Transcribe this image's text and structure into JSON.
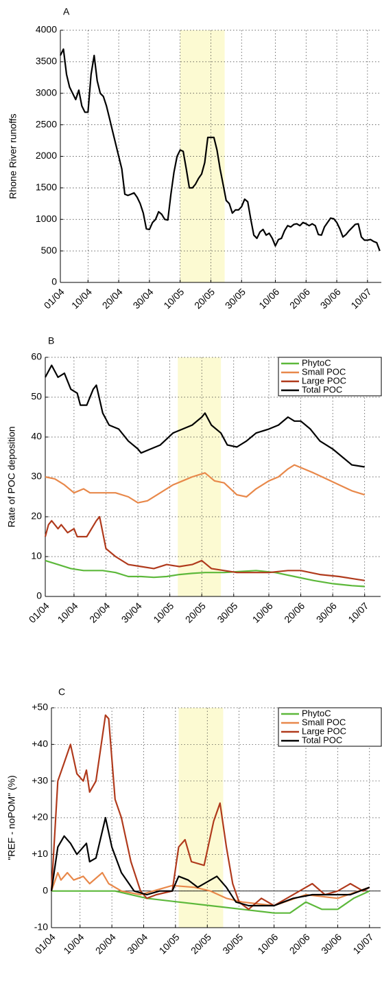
{
  "chart_data": [
    {
      "type": "line",
      "panel_label": "A",
      "ylabel": "Rhone River runoffs",
      "xlim": [
        0,
        104.5
      ],
      "ylim": [
        0,
        4000
      ],
      "xticks": [
        {
          "value": 0,
          "label": "01/04"
        },
        {
          "value": 9,
          "label": "10/04"
        },
        {
          "value": 19,
          "label": "20/04"
        },
        {
          "value": 29,
          "label": "30/04"
        },
        {
          "value": 39,
          "label": "10/05"
        },
        {
          "value": 49,
          "label": "20/05"
        },
        {
          "value": 59,
          "label": "30/05"
        },
        {
          "value": 70,
          "label": "10/06"
        },
        {
          "value": 80,
          "label": "20/06"
        },
        {
          "value": 90,
          "label": "30/06"
        },
        {
          "value": 100,
          "label": "10/07"
        }
      ],
      "yticks": [
        0,
        500,
        1000,
        1500,
        2000,
        2500,
        3000,
        3500,
        4000
      ],
      "grid": true,
      "highlight_x": [
        39,
        53.5
      ],
      "highlight_color": "#fcfad2",
      "color": "#000000",
      "x": [
        0,
        1,
        2,
        3,
        4,
        5,
        6,
        7,
        8,
        9,
        10,
        11,
        12,
        13,
        14,
        15,
        16,
        17,
        18,
        19,
        20,
        21,
        22,
        23,
        24,
        25,
        26,
        27,
        28,
        29,
        30,
        31,
        32,
        33,
        34,
        35,
        36,
        37,
        38,
        39,
        40,
        41,
        42,
        43,
        44,
        45,
        46,
        47,
        48,
        49,
        50,
        51,
        52,
        53,
        54,
        55,
        56,
        57,
        58,
        59,
        60,
        61,
        62,
        63,
        64,
        65,
        66,
        67,
        68,
        69,
        70,
        71,
        72,
        73,
        74,
        75,
        76,
        77,
        78,
        79,
        80,
        81,
        82,
        83,
        84,
        85,
        86,
        87,
        88,
        89,
        90,
        91,
        92,
        93,
        94,
        95,
        96,
        97,
        98,
        99,
        100,
        101,
        102,
        103,
        104
      ],
      "values": [
        3600,
        3700,
        3300,
        3100,
        3000,
        2900,
        3050,
        2800,
        2700,
        2700,
        3300,
        3600,
        3200,
        3000,
        2950,
        2800,
        2600,
        2400,
        2200,
        2000,
        1800,
        1400,
        1380,
        1400,
        1420,
        1350,
        1250,
        1100,
        850,
        840,
        950,
        1000,
        1120,
        1080,
        1000,
        990,
        1400,
        1750,
        2000,
        2100,
        2080,
        1800,
        1500,
        1500,
        1560,
        1650,
        1720,
        1900,
        2300,
        2300,
        2300,
        2100,
        1800,
        1550,
        1300,
        1250,
        1100,
        1150,
        1150,
        1200,
        1320,
        1280,
        1000,
        750,
        700,
        800,
        840,
        750,
        780,
        700,
        580,
        680,
        700,
        820,
        900,
        880,
        920,
        930,
        900,
        950,
        930,
        900,
        930,
        900,
        760,
        750,
        880,
        950,
        1020,
        1010,
        950,
        850,
        720,
        760,
        820,
        870,
        920,
        930,
        720,
        670,
        670,
        680,
        650,
        630,
        500
      ]
    },
    {
      "type": "line",
      "panel_label": "B",
      "ylabel": "Rate of POC deposition",
      "xlim": [
        0,
        105
      ],
      "ylim": [
        0,
        60
      ],
      "xticks": [
        {
          "value": 0,
          "label": "01/04"
        },
        {
          "value": 9,
          "label": "10/04"
        },
        {
          "value": 19,
          "label": "20/04"
        },
        {
          "value": 29,
          "label": "30/04"
        },
        {
          "value": 39,
          "label": "10/05"
        },
        {
          "value": 49,
          "label": "20/05"
        },
        {
          "value": 59,
          "label": "30/05"
        },
        {
          "value": 70,
          "label": "10/06"
        },
        {
          "value": 80,
          "label": "20/06"
        },
        {
          "value": 90,
          "label": "30/06"
        },
        {
          "value": 100,
          "label": "10/07"
        }
      ],
      "yticks": [
        0,
        10,
        20,
        30,
        40,
        50,
        60
      ],
      "grid": true,
      "highlight_x": [
        41.5,
        55
      ],
      "highlight_color": "#fcfad2",
      "legend": "upper right",
      "series": [
        {
          "name": "PhytoC",
          "color": "#5cb83a",
          "x": [
            0,
            4,
            8,
            12,
            18,
            22,
            26,
            30,
            34,
            38,
            42,
            46,
            50,
            56,
            60,
            66,
            72,
            78,
            84,
            90,
            96,
            100
          ],
          "values": [
            9,
            8,
            7,
            6.5,
            6.5,
            6,
            5,
            5,
            4.8,
            5,
            5.5,
            5.8,
            6,
            6,
            6.2,
            6.5,
            6,
            5,
            4,
            3.2,
            2.7,
            2.5
          ]
        },
        {
          "name": "Small POC",
          "color": "#e8884a",
          "x": [
            0,
            3,
            6,
            9,
            12,
            14,
            18,
            22,
            26,
            29,
            32,
            36,
            40,
            43,
            46,
            50,
            53,
            56,
            60,
            63,
            66,
            70,
            73,
            76,
            78,
            81,
            84,
            88,
            92,
            96,
            100
          ],
          "values": [
            30,
            29.5,
            28,
            26,
            27,
            26,
            26,
            26,
            25,
            23.5,
            24,
            26,
            28,
            29,
            30,
            31,
            29,
            28.5,
            25.5,
            25,
            27,
            29,
            30,
            32,
            33,
            32,
            31,
            29.5,
            28,
            26.5,
            25.5
          ]
        },
        {
          "name": "Large POC",
          "color": "#b03a1c",
          "x": [
            0,
            1,
            2,
            4,
            5,
            7,
            9,
            10,
            13,
            16,
            17,
            19,
            22,
            26,
            30,
            34,
            38,
            42,
            46,
            49,
            52,
            56,
            60,
            66,
            70,
            76,
            80,
            86,
            92,
            96,
            100
          ],
          "values": [
            15,
            18,
            19,
            17,
            18,
            16,
            17,
            15,
            15,
            19,
            20,
            12,
            10,
            8,
            7.5,
            7,
            8,
            7.5,
            8,
            9,
            7,
            6.5,
            6,
            6,
            6,
            6.5,
            6.5,
            5.5,
            5,
            4.5,
            4
          ]
        },
        {
          "name": "Total POC",
          "color": "#000000",
          "x": [
            0,
            2,
            4,
            6,
            8,
            10,
            11,
            13,
            15,
            16,
            18,
            20,
            23,
            26,
            29,
            30,
            33,
            36,
            40,
            43,
            46,
            49,
            50,
            52,
            55,
            57,
            60,
            63,
            66,
            70,
            73,
            76,
            78,
            80,
            83,
            86,
            90,
            93,
            96,
            100
          ],
          "values": [
            55,
            58,
            55,
            56,
            52,
            51,
            48,
            48,
            52,
            53,
            46,
            43,
            42,
            39,
            37,
            36,
            37,
            38,
            41,
            42,
            43,
            45,
            46,
            43,
            41,
            38,
            37.5,
            39,
            41,
            42,
            43,
            45,
            44,
            44,
            42,
            39,
            37,
            35,
            33,
            32.5
          ]
        }
      ]
    },
    {
      "type": "line",
      "panel_label": "C",
      "ylabel": "\"REF - noPOM\" (%)",
      "xlim": [
        0,
        103.5
      ],
      "ylim": [
        -10,
        50
      ],
      "xticks": [
        {
          "value": 0,
          "label": "01/04"
        },
        {
          "value": 9,
          "label": "10/04"
        },
        {
          "value": 19,
          "label": "20/04"
        },
        {
          "value": 29,
          "label": "30/04"
        },
        {
          "value": 39,
          "label": "10/05"
        },
        {
          "value": 49,
          "label": "20/05"
        },
        {
          "value": 59,
          "label": "30/05"
        },
        {
          "value": 70,
          "label": "10/06"
        },
        {
          "value": 80,
          "label": "20/06"
        },
        {
          "value": 90,
          "label": "30/06"
        },
        {
          "value": 100,
          "label": "10/07"
        }
      ],
      "yticks": [
        -10,
        0,
        {
          "value": 10,
          "label": "+10"
        },
        {
          "value": 20,
          "label": "+20"
        },
        {
          "value": 30,
          "label": "+30"
        },
        {
          "value": 40,
          "label": "+40"
        },
        {
          "value": 50,
          "label": "+50"
        }
      ],
      "grid": true,
      "zero_line": true,
      "highlight_x": [
        40,
        54
      ],
      "highlight_color": "#fcfad2",
      "legend": "upper right",
      "series": [
        {
          "name": "PhytoC",
          "color": "#5cb83a",
          "x": [
            0,
            10,
            20,
            30,
            40,
            50,
            60,
            70,
            75,
            80,
            85,
            90,
            95,
            100
          ],
          "values": [
            0,
            0,
            0,
            -2,
            -3,
            -4,
            -5,
            -6,
            -6,
            -3,
            -5,
            -5,
            -2,
            0
          ]
        },
        {
          "name": "Small POC",
          "color": "#e8884a",
          "x": [
            0,
            2,
            3,
            5,
            7,
            10,
            12,
            16,
            18,
            22,
            28,
            32,
            38,
            45,
            50,
            55,
            60,
            70,
            80,
            90,
            100
          ],
          "values": [
            0,
            5,
            3,
            5,
            3,
            4,
            2,
            5,
            2,
            0,
            -1,
            0,
            1.5,
            1,
            0,
            -2,
            -3,
            -4,
            -1,
            -2,
            1
          ]
        },
        {
          "name": "Large POC",
          "color": "#b03a1c",
          "x": [
            0,
            2,
            4,
            6,
            8,
            10,
            11,
            12,
            14,
            17,
            18,
            20,
            22,
            25,
            28,
            30,
            33,
            38,
            40,
            42,
            44,
            48,
            51,
            53,
            55,
            57,
            59,
            62,
            66,
            70,
            74,
            78,
            82,
            86,
            90,
            94,
            98,
            100
          ],
          "values": [
            0,
            30,
            35,
            40,
            32,
            30,
            33,
            27,
            30,
            48,
            47,
            25,
            20,
            8,
            0,
            -2,
            -1,
            0,
            12,
            14,
            8,
            7,
            19,
            24,
            12,
            2,
            -3,
            -5,
            -2,
            -4,
            -2,
            0,
            2,
            -1,
            0,
            2,
            0,
            1
          ]
        },
        {
          "name": "Total POC",
          "color": "#000000",
          "x": [
            0,
            2,
            4,
            6,
            8,
            10,
            11,
            12,
            14,
            17,
            19,
            22,
            26,
            30,
            34,
            38,
            40,
            43,
            46,
            50,
            52,
            55,
            58,
            62,
            66,
            70,
            76,
            82,
            88,
            94,
            100
          ],
          "values": [
            0,
            12,
            15,
            13,
            10,
            12,
            13,
            8,
            9,
            20,
            12,
            5,
            0,
            -1,
            0,
            0,
            4,
            3,
            1,
            3,
            4,
            1,
            -3,
            -4,
            -4,
            -4,
            -2,
            -1,
            -1,
            -1,
            1
          ]
        }
      ]
    }
  ]
}
